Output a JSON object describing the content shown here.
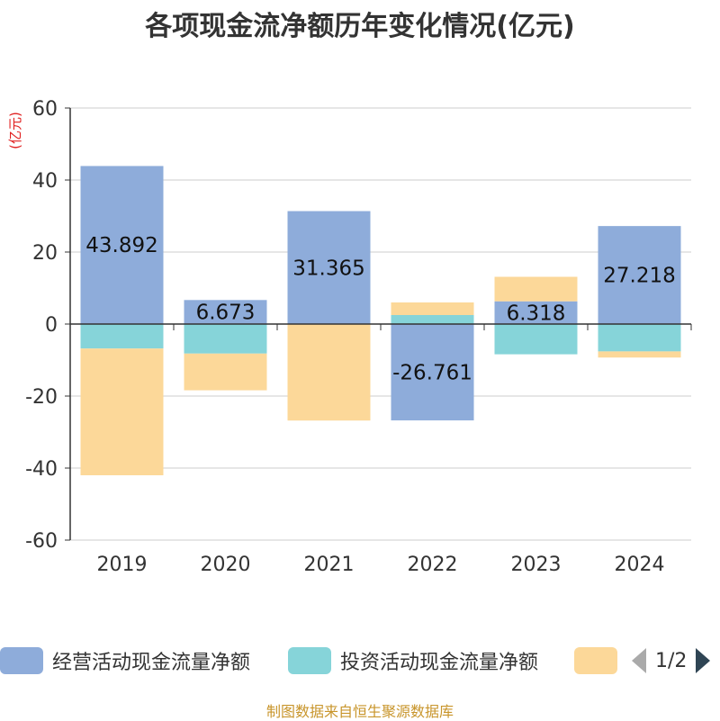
{
  "chart_data": {
    "type": "bar",
    "stacked": true,
    "title": "各项现金流净额历年变化情况(亿元)",
    "ylabel": "(亿元)",
    "ylim": [
      -60,
      60
    ],
    "yticks": [
      60,
      40,
      20,
      0,
      -20,
      -40,
      -60
    ],
    "categories": [
      "2019",
      "2020",
      "2021",
      "2022",
      "2023",
      "2024"
    ],
    "grid": true,
    "legend_position": "bottom",
    "series": [
      {
        "name": "经营活动现金流量净额",
        "color": "#8eacda",
        "values": [
          43.892,
          6.673,
          31.365,
          -26.761,
          6.318,
          27.218
        ],
        "show_labels": true
      },
      {
        "name": "投资活动现金流量净额",
        "color": "#86d4d9",
        "values": [
          -6.8,
          -8.2,
          0,
          2.5,
          -8.4,
          -7.6
        ],
        "show_labels": false
      },
      {
        "name": "",
        "color": "#fcd899",
        "values": [
          -35.2,
          -10.2,
          -26.8,
          3.5,
          6.8,
          -1.7
        ],
        "show_labels": false
      }
    ]
  },
  "legend": {
    "items": [
      {
        "label": "经营活动现金流量净额",
        "color": "#8eacda"
      },
      {
        "label": "投资活动现金流量净额",
        "color": "#86d4d9"
      },
      {
        "label": "",
        "color": "#fcd899"
      }
    ],
    "page": "1/2"
  },
  "source": "制图数据来自恒生聚源数据库"
}
